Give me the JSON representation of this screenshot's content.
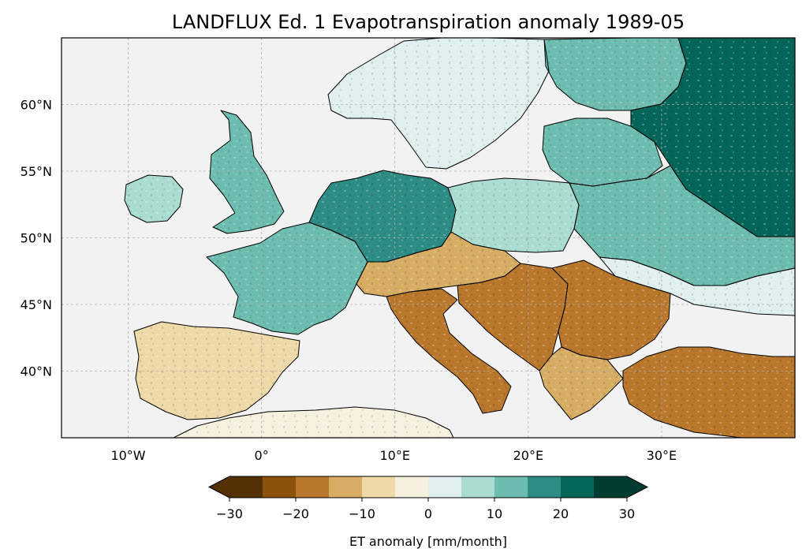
{
  "title": "LANDFLUX Ed. 1 Evapotranspiration anomaly 1989-05",
  "map": {
    "extent": {
      "lon_min": -15,
      "lon_max": 40,
      "lat_min": 35,
      "lat_max": 65
    },
    "lon_ticks": [
      {
        "value": -10,
        "label": "10°W"
      },
      {
        "value": 0,
        "label": "0°"
      },
      {
        "value": 10,
        "label": "10°E"
      },
      {
        "value": 20,
        "label": "20°E"
      },
      {
        "value": 30,
        "label": "30°E"
      }
    ],
    "lat_ticks": [
      {
        "value": 40,
        "label": "40°N"
      },
      {
        "value": 45,
        "label": "45°N"
      },
      {
        "value": 50,
        "label": "50°N"
      },
      {
        "value": 55,
        "label": "55°N"
      },
      {
        "value": 60,
        "label": "60°N"
      }
    ],
    "gridlines": true,
    "ocean_color": "#f2f2f2"
  },
  "colorbar": {
    "label": "ET anomaly [mm/month]",
    "orientation": "horizontal",
    "extend": "both",
    "boundaries": [
      -30,
      -25,
      -20,
      -15,
      -10,
      -5,
      0,
      5,
      10,
      15,
      20,
      25,
      30
    ],
    "tick_labels": [
      {
        "value": -30,
        "label": "−30"
      },
      {
        "value": -20,
        "label": "−20"
      },
      {
        "value": -10,
        "label": "−10"
      },
      {
        "value": 0,
        "label": "0"
      },
      {
        "value": 10,
        "label": "10"
      },
      {
        "value": 20,
        "label": "20"
      },
      {
        "value": 30,
        "label": "30"
      }
    ],
    "colors": [
      "#543005",
      "#8c510a",
      "#b8772b",
      "#d7ad63",
      "#eedaa8",
      "#f6f0de",
      "#dff0ee",
      "#abdcd2",
      "#6cbdb0",
      "#2d8c84",
      "#046659",
      "#003c30"
    ],
    "under_color": "#543005",
    "over_color": "#003c30"
  },
  "regions": [
    {
      "name": "iberia",
      "anomaly": -8
    },
    {
      "name": "france",
      "anomaly": 12
    },
    {
      "name": "britain",
      "anomaly": 10
    },
    {
      "name": "ireland",
      "anomaly": 8
    },
    {
      "name": "benelux-germany",
      "anomaly": 18
    },
    {
      "name": "scandinavia",
      "anomaly": 2
    },
    {
      "name": "finland",
      "anomaly": 14
    },
    {
      "name": "russia-north",
      "anomaly": 20
    },
    {
      "name": "baltics",
      "anomaly": 12
    },
    {
      "name": "poland",
      "anomaly": 6
    },
    {
      "name": "belarus-ukraine",
      "anomaly": 10
    },
    {
      "name": "ukraine-south",
      "anomaly": 2
    },
    {
      "name": "alps",
      "anomaly": -14
    },
    {
      "name": "italy",
      "anomaly": -16
    },
    {
      "name": "balkans",
      "anomaly": -18
    },
    {
      "name": "romania-bulgaria",
      "anomaly": -20
    },
    {
      "name": "greece",
      "anomaly": -14
    },
    {
      "name": "turkey",
      "anomaly": -18
    },
    {
      "name": "north-africa",
      "anomaly": -4
    }
  ]
}
